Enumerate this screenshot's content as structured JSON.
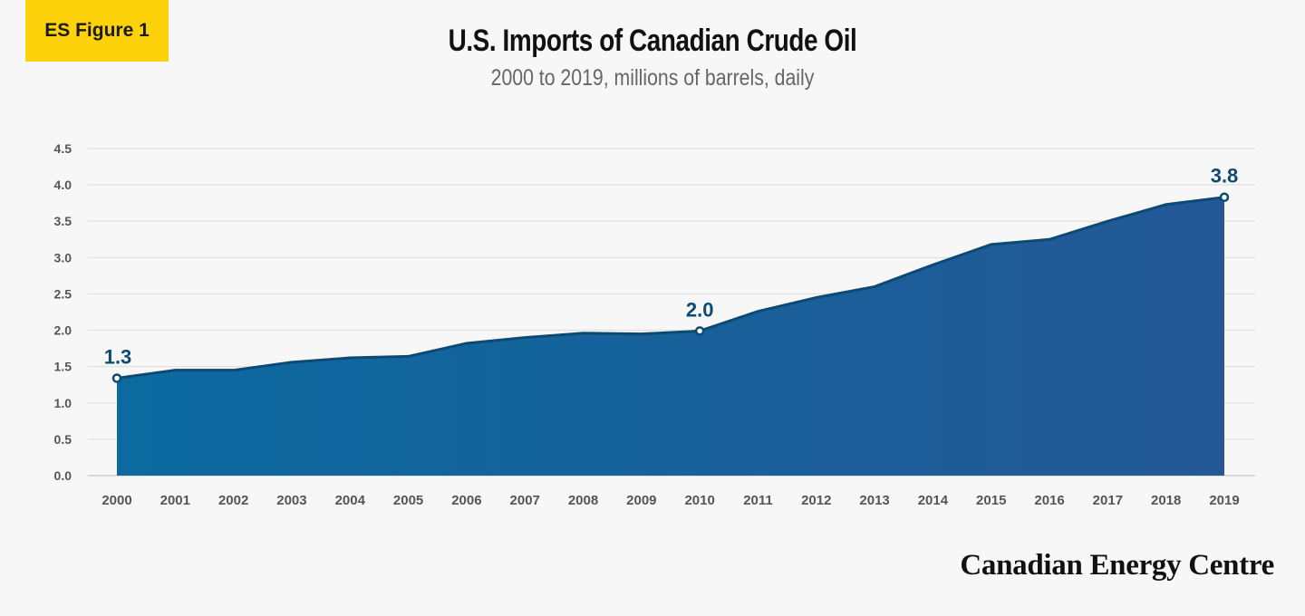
{
  "badge": "ES Figure 1",
  "chart_data": {
    "type": "area",
    "title": "U.S. Imports of Canadian Crude Oil",
    "subtitle": "2000 to 2019, millions of barrels, daily",
    "categories": [
      "2000",
      "2001",
      "2002",
      "2003",
      "2004",
      "2005",
      "2006",
      "2007",
      "2008",
      "2009",
      "2010",
      "2011",
      "2012",
      "2013",
      "2014",
      "2015",
      "2016",
      "2017",
      "2018",
      "2019"
    ],
    "values": [
      1.34,
      1.45,
      1.45,
      1.56,
      1.62,
      1.64,
      1.82,
      1.9,
      1.96,
      1.95,
      1.99,
      2.26,
      2.45,
      2.6,
      2.9,
      3.18,
      3.25,
      3.5,
      3.73,
      3.83
    ],
    "data_labels": [
      {
        "index": 0,
        "text": "1.3"
      },
      {
        "index": 10,
        "text": "2.0"
      },
      {
        "index": 19,
        "text": "3.8"
      }
    ],
    "yticks": [
      "0.0",
      "0.5",
      "1.0",
      "1.5",
      "2.0",
      "2.5",
      "3.0",
      "3.5",
      "4.0",
      "4.5"
    ],
    "ylim": [
      0,
      4.5
    ],
    "grid": true,
    "colors": {
      "fill_start": "#0b6aa0",
      "fill_end": "#245896",
      "line": "#0d4a73",
      "label": "#0d4a73"
    }
  },
  "logo": "Canadian Energy Centre"
}
